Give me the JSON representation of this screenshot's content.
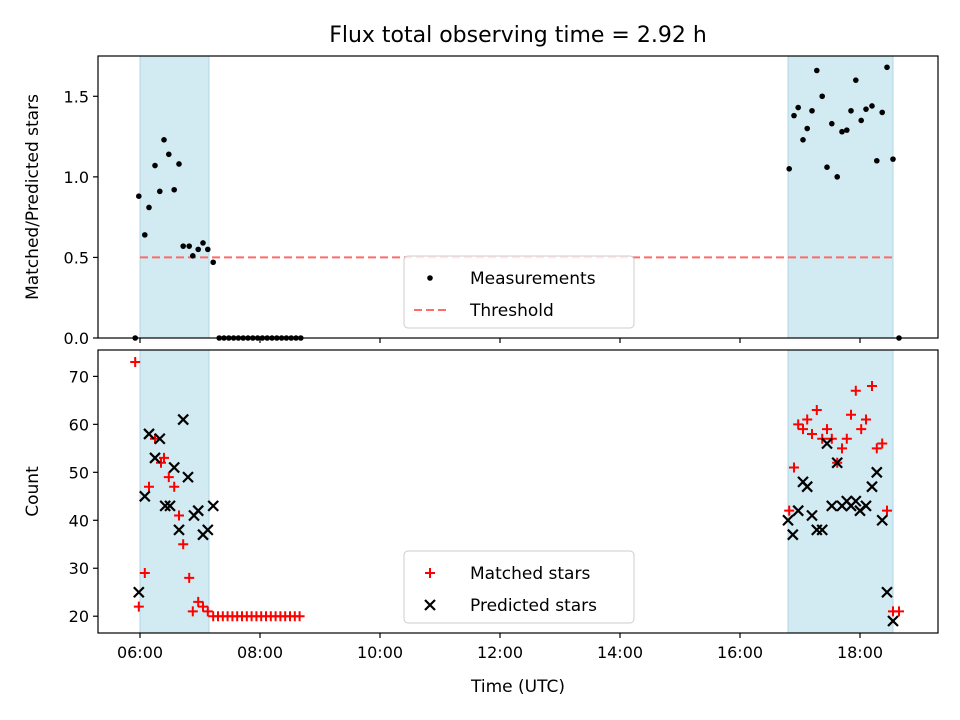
{
  "title": "Flux total observing time = 2.92 h",
  "colors": {
    "shade": "#add8e6",
    "measurement": "#000000",
    "threshold": "#ff6b6b",
    "matched": "#ff0000",
    "predicted": "#000000"
  },
  "chart_data": [
    {
      "type": "scatter",
      "ylabel": "Matched/Predicted stars",
      "x_axis": "time-of-day hours",
      "xlim": [
        5.3,
        19.3
      ],
      "ylim": [
        0,
        1.75
      ],
      "yticks": [
        0.0,
        0.5,
        1.0,
        1.5
      ],
      "ytick_labels": [
        "0.0",
        "0.5",
        "1.0",
        "1.5"
      ],
      "shaded_intervals": [
        [
          6.0,
          7.15
        ],
        [
          16.8,
          18.55
        ]
      ],
      "threshold": {
        "name": "Threshold",
        "value": 0.5,
        "x_range": [
          6.0,
          18.55
        ]
      },
      "legend": {
        "position": "lower-center",
        "entries": [
          "Measurements",
          "Threshold"
        ]
      },
      "series": [
        {
          "name": "Measurements",
          "marker": "dot",
          "points": [
            [
              5.92,
              0.0
            ],
            [
              5.98,
              0.88
            ],
            [
              6.08,
              0.64
            ],
            [
              6.15,
              0.81
            ],
            [
              6.25,
              1.07
            ],
            [
              6.33,
              0.91
            ],
            [
              6.4,
              1.23
            ],
            [
              6.48,
              1.14
            ],
            [
              6.57,
              0.92
            ],
            [
              6.65,
              1.08
            ],
            [
              6.72,
              0.57
            ],
            [
              6.82,
              0.57
            ],
            [
              6.88,
              0.51
            ],
            [
              6.97,
              0.55
            ],
            [
              7.05,
              0.59
            ],
            [
              7.13,
              0.55
            ],
            [
              7.22,
              0.47
            ],
            [
              7.32,
              0.0
            ],
            [
              7.4,
              0.0
            ],
            [
              7.48,
              0.0
            ],
            [
              7.56,
              0.0
            ],
            [
              7.64,
              0.0
            ],
            [
              7.72,
              0.0
            ],
            [
              7.8,
              0.0
            ],
            [
              7.88,
              0.0
            ],
            [
              7.96,
              0.0
            ],
            [
              8.04,
              0.0
            ],
            [
              8.12,
              0.0
            ],
            [
              8.2,
              0.0
            ],
            [
              8.28,
              0.0
            ],
            [
              8.36,
              0.0
            ],
            [
              8.44,
              0.0
            ],
            [
              8.52,
              0.0
            ],
            [
              8.6,
              0.0
            ],
            [
              8.68,
              0.0
            ],
            [
              16.82,
              1.05
            ],
            [
              16.9,
              1.38
            ],
            [
              16.97,
              1.43
            ],
            [
              17.05,
              1.23
            ],
            [
              17.12,
              1.3
            ],
            [
              17.2,
              1.41
            ],
            [
              17.28,
              1.66
            ],
            [
              17.37,
              1.5
            ],
            [
              17.45,
              1.06
            ],
            [
              17.53,
              1.33
            ],
            [
              17.62,
              1.0
            ],
            [
              17.7,
              1.28
            ],
            [
              17.78,
              1.29
            ],
            [
              17.85,
              1.41
            ],
            [
              17.93,
              1.6
            ],
            [
              18.02,
              1.35
            ],
            [
              18.1,
              1.42
            ],
            [
              18.2,
              1.44
            ],
            [
              18.28,
              1.1
            ],
            [
              18.37,
              1.4
            ],
            [
              18.45,
              1.68
            ],
            [
              18.55,
              1.11
            ],
            [
              18.65,
              0.0
            ]
          ]
        }
      ]
    },
    {
      "type": "scatter",
      "xlabel": "Time (UTC)",
      "ylabel": "Count",
      "x_axis": "time-of-day hours",
      "xlim": [
        5.3,
        19.3
      ],
      "ylim": [
        16.5,
        75.5
      ],
      "xticks": [
        6,
        8,
        10,
        12,
        14,
        16,
        18
      ],
      "xtick_labels": [
        "06:00",
        "08:00",
        "10:00",
        "12:00",
        "14:00",
        "16:00",
        "18:00"
      ],
      "yticks": [
        20,
        30,
        40,
        50,
        60,
        70
      ],
      "ytick_labels": [
        "20",
        "30",
        "40",
        "50",
        "60",
        "70"
      ],
      "shaded_intervals": [
        [
          6.0,
          7.15
        ],
        [
          16.8,
          18.55
        ]
      ],
      "legend": {
        "position": "lower-center",
        "entries": [
          "Matched stars",
          "Predicted stars"
        ]
      },
      "series": [
        {
          "name": "Matched stars",
          "marker": "plus",
          "points": [
            [
              5.92,
              73
            ],
            [
              5.98,
              22
            ],
            [
              6.08,
              29
            ],
            [
              6.15,
              47
            ],
            [
              6.25,
              57
            ],
            [
              6.35,
              52
            ],
            [
              6.4,
              53
            ],
            [
              6.48,
              49
            ],
            [
              6.57,
              47
            ],
            [
              6.65,
              41
            ],
            [
              6.72,
              35
            ],
            [
              6.82,
              28
            ],
            [
              6.88,
              21
            ],
            [
              6.97,
              23
            ],
            [
              7.05,
              22
            ],
            [
              7.13,
              21
            ],
            [
              7.22,
              20
            ],
            [
              7.3,
              20
            ],
            [
              7.38,
              20
            ],
            [
              7.46,
              20
            ],
            [
              7.54,
              20
            ],
            [
              7.62,
              20
            ],
            [
              7.7,
              20
            ],
            [
              7.78,
              20
            ],
            [
              7.86,
              20
            ],
            [
              7.94,
              20
            ],
            [
              8.02,
              20
            ],
            [
              8.1,
              20
            ],
            [
              8.18,
              20
            ],
            [
              8.26,
              20
            ],
            [
              8.34,
              20
            ],
            [
              8.42,
              20
            ],
            [
              8.5,
              20
            ],
            [
              8.58,
              20
            ],
            [
              8.66,
              20
            ],
            [
              16.82,
              42
            ],
            [
              16.9,
              51
            ],
            [
              16.97,
              60
            ],
            [
              17.05,
              59
            ],
            [
              17.12,
              61
            ],
            [
              17.2,
              58
            ],
            [
              17.28,
              63
            ],
            [
              17.37,
              57
            ],
            [
              17.45,
              59
            ],
            [
              17.53,
              57
            ],
            [
              17.62,
              52
            ],
            [
              17.7,
              55
            ],
            [
              17.78,
              57
            ],
            [
              17.85,
              62
            ],
            [
              17.93,
              67
            ],
            [
              18.02,
              59
            ],
            [
              18.1,
              61
            ],
            [
              18.2,
              68
            ],
            [
              18.28,
              55
            ],
            [
              18.37,
              56
            ],
            [
              18.45,
              42
            ],
            [
              18.55,
              21
            ],
            [
              18.65,
              21
            ]
          ]
        },
        {
          "name": "Predicted stars",
          "marker": "x",
          "points": [
            [
              5.98,
              25
            ],
            [
              6.08,
              45
            ],
            [
              6.15,
              58
            ],
            [
              6.25,
              53
            ],
            [
              6.33,
              57
            ],
            [
              6.42,
              43
            ],
            [
              6.5,
              43
            ],
            [
              6.57,
              51
            ],
            [
              6.65,
              38
            ],
            [
              6.72,
              61
            ],
            [
              6.8,
              49
            ],
            [
              6.9,
              41
            ],
            [
              6.97,
              42
            ],
            [
              7.05,
              37
            ],
            [
              7.13,
              38
            ],
            [
              7.22,
              43
            ],
            [
              16.8,
              40
            ],
            [
              16.88,
              37
            ],
            [
              16.97,
              42
            ],
            [
              17.05,
              48
            ],
            [
              17.12,
              47
            ],
            [
              17.2,
              41
            ],
            [
              17.28,
              38
            ],
            [
              17.37,
              38
            ],
            [
              17.45,
              56
            ],
            [
              17.53,
              43
            ],
            [
              17.62,
              52
            ],
            [
              17.7,
              43
            ],
            [
              17.78,
              44
            ],
            [
              17.85,
              43
            ],
            [
              17.93,
              44
            ],
            [
              18.0,
              42
            ],
            [
              18.1,
              43
            ],
            [
              18.2,
              47
            ],
            [
              18.28,
              50
            ],
            [
              18.37,
              40
            ],
            [
              18.45,
              25
            ],
            [
              18.55,
              19
            ]
          ]
        }
      ]
    }
  ]
}
